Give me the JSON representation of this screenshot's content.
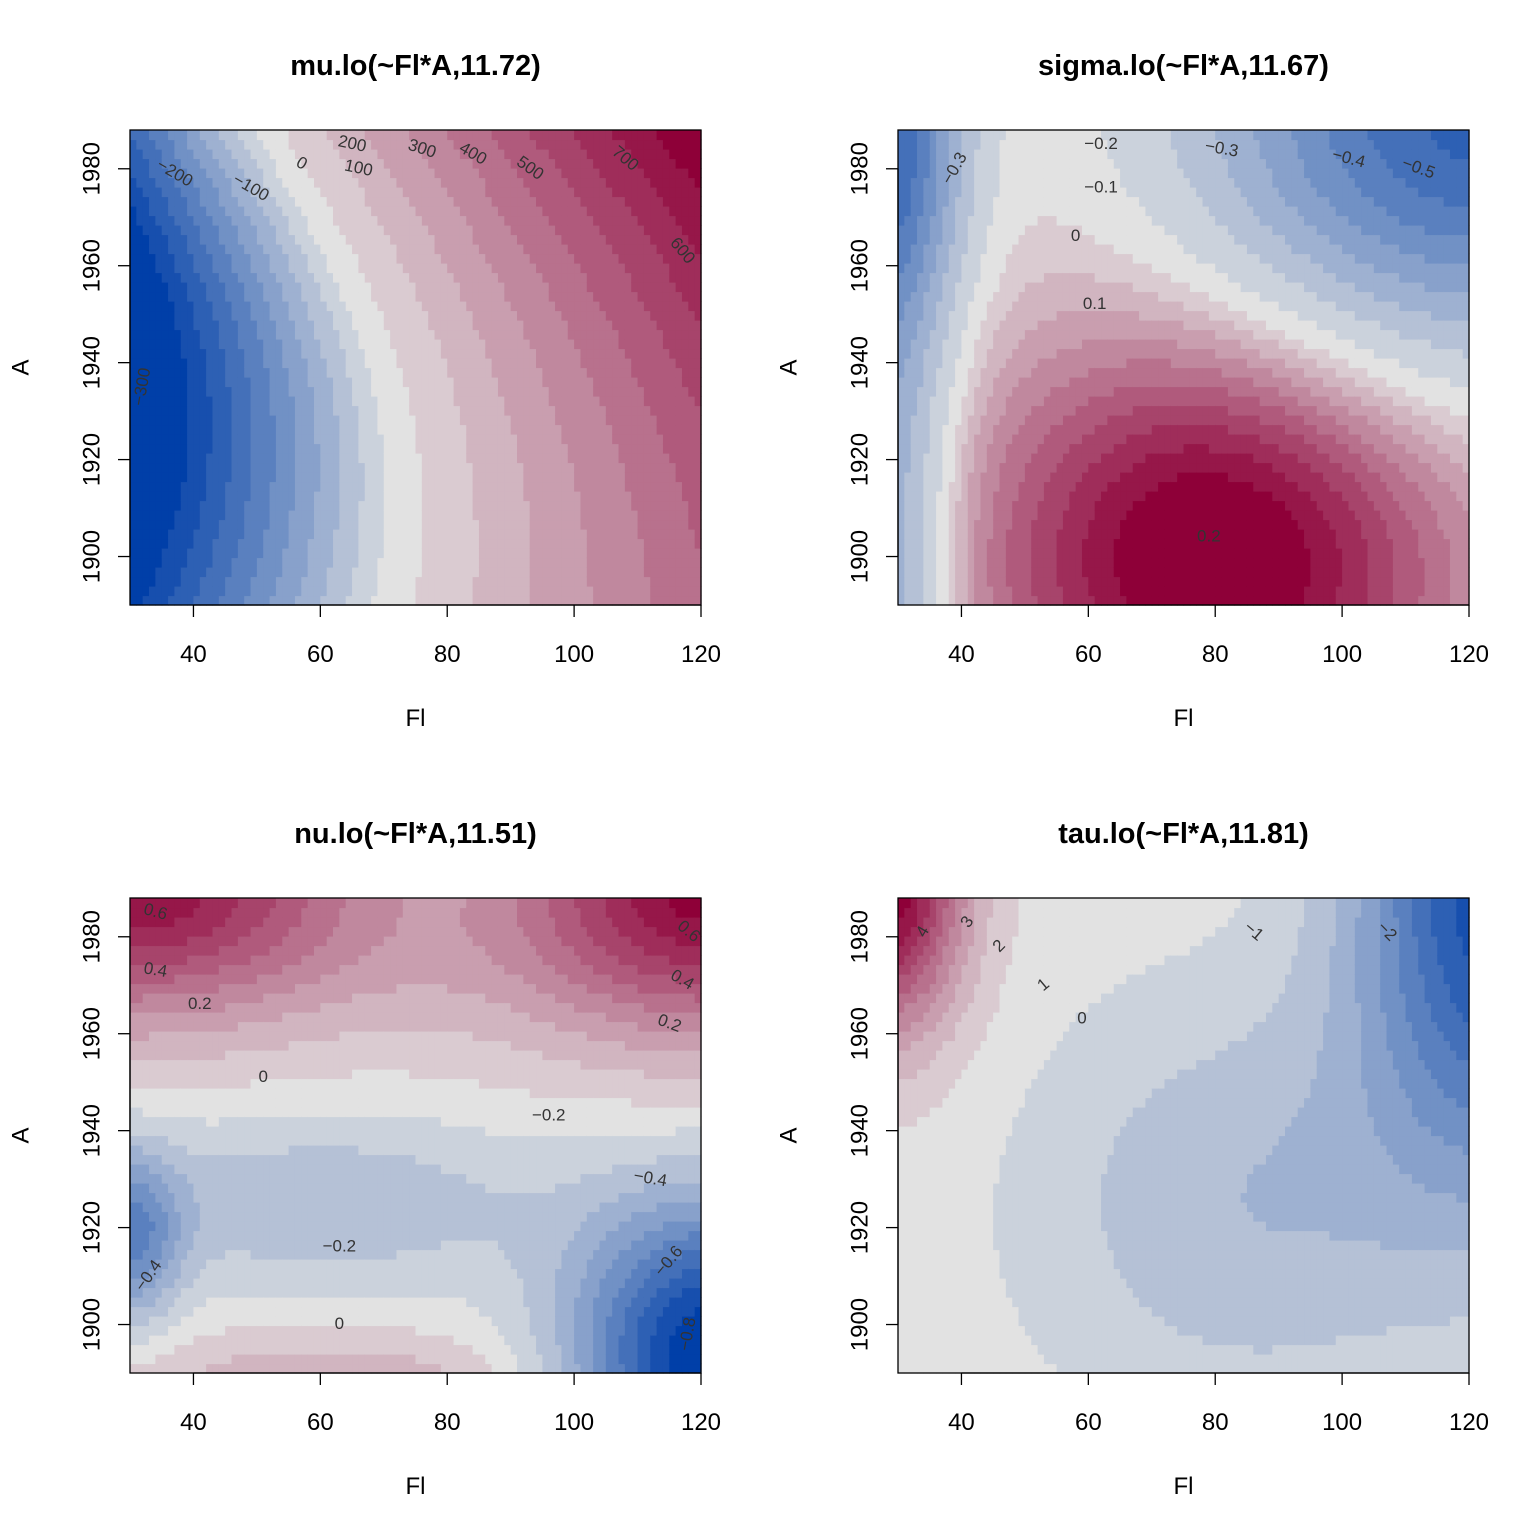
{
  "chart_data": [
    {
      "type": "heatmap",
      "title": "mu.lo(~Fl*A,11.72)",
      "xlabel": "Fl",
      "ylabel": "A",
      "xlim": [
        30,
        120
      ],
      "ylim": [
        1890,
        1988
      ],
      "x_ticks": [
        40,
        60,
        80,
        100,
        120
      ],
      "y_ticks": [
        1900,
        1920,
        1940,
        1960,
        1980
      ],
      "colorscale": [
        "#003fa8",
        "#e2e2e2",
        "#8e0038"
      ],
      "grid": false,
      "z_range": [
        -330,
        760
      ],
      "contour_labels": [
        {
          "text": "−300",
          "x": 32,
          "y": 1935,
          "angle": -80
        },
        {
          "text": "−200",
          "x": 37,
          "y": 1979,
          "angle": 30
        },
        {
          "text": "−100",
          "x": 49,
          "y": 1976,
          "angle": 30
        },
        {
          "text": "0",
          "x": 57,
          "y": 1981,
          "angle": 30
        },
        {
          "text": "100",
          "x": 66,
          "y": 1980,
          "angle": 12
        },
        {
          "text": "200",
          "x": 65,
          "y": 1985,
          "angle": 12
        },
        {
          "text": "300",
          "x": 76,
          "y": 1984,
          "angle": 18
        },
        {
          "text": "400",
          "x": 84,
          "y": 1983,
          "angle": 30
        },
        {
          "text": "500",
          "x": 93,
          "y": 1980,
          "angle": 35
        },
        {
          "text": "600",
          "x": 117,
          "y": 1963,
          "angle": 50
        },
        {
          "text": "700",
          "x": 108,
          "y": 1982,
          "angle": 40
        }
      ]
    },
    {
      "type": "heatmap",
      "title": "sigma.lo(~Fl*A,11.67)",
      "xlabel": "Fl",
      "ylabel": "A",
      "xlim": [
        30,
        120
      ],
      "ylim": [
        1890,
        1988
      ],
      "x_ticks": [
        40,
        60,
        80,
        100,
        120
      ],
      "y_ticks": [
        1900,
        1920,
        1940,
        1960,
        1980
      ],
      "colorscale": [
        "#003fa8",
        "#e2e2e2",
        "#8e0038"
      ],
      "grid": false,
      "z_range": [
        -0.55,
        0.25
      ],
      "contour_labels": [
        {
          "text": "−0.3",
          "x": 39,
          "y": 1980,
          "angle": -60
        },
        {
          "text": "−0.2",
          "x": 62,
          "y": 1985,
          "angle": 0
        },
        {
          "text": "−0.1",
          "x": 62,
          "y": 1976,
          "angle": 0
        },
        {
          "text": "0",
          "x": 58,
          "y": 1966,
          "angle": 0
        },
        {
          "text": "0.1",
          "x": 61,
          "y": 1952,
          "angle": 0
        },
        {
          "text": "0.2",
          "x": 79,
          "y": 1904,
          "angle": 0
        },
        {
          "text": "−0.3",
          "x": 81,
          "y": 1984,
          "angle": 10
        },
        {
          "text": "−0.4",
          "x": 101,
          "y": 1982,
          "angle": 15
        },
        {
          "text": "−0.5",
          "x": 112,
          "y": 1980,
          "angle": 20
        }
      ]
    },
    {
      "type": "heatmap",
      "title": "nu.lo(~Fl*A,11.51)",
      "xlabel": "Fl",
      "ylabel": "A",
      "xlim": [
        30,
        120
      ],
      "ylim": [
        1890,
        1988
      ],
      "x_ticks": [
        40,
        60,
        80,
        100,
        120
      ],
      "y_ticks": [
        1900,
        1920,
        1940,
        1960,
        1980
      ],
      "colorscale": [
        "#003fa8",
        "#e2e2e2",
        "#8e0038"
      ],
      "grid": false,
      "z_range": [
        -0.85,
        0.8
      ],
      "contour_labels": [
        {
          "text": "0.6",
          "x": 34,
          "y": 1985,
          "angle": 15
        },
        {
          "text": "0.4",
          "x": 34,
          "y": 1973,
          "angle": 10
        },
        {
          "text": "0.2",
          "x": 41,
          "y": 1966,
          "angle": 0
        },
        {
          "text": "0",
          "x": 51,
          "y": 1951,
          "angle": 0
        },
        {
          "text": "−0.2",
          "x": 96,
          "y": 1943,
          "angle": 0
        },
        {
          "text": "−0.2",
          "x": 63,
          "y": 1916,
          "angle": 0
        },
        {
          "text": "0",
          "x": 63,
          "y": 1900,
          "angle": 0
        },
        {
          "text": "−0.4",
          "x": 33,
          "y": 1910,
          "angle": -55
        },
        {
          "text": "−0.4",
          "x": 112,
          "y": 1930,
          "angle": 10
        },
        {
          "text": "−0.6",
          "x": 115,
          "y": 1913,
          "angle": -50
        },
        {
          "text": "−0.8",
          "x": 118,
          "y": 1898,
          "angle": -80
        },
        {
          "text": "0.6",
          "x": 118,
          "y": 1981,
          "angle": 40
        },
        {
          "text": "0.4",
          "x": 117,
          "y": 1971,
          "angle": 30
        },
        {
          "text": "0.2",
          "x": 115,
          "y": 1962,
          "angle": 20
        }
      ]
    },
    {
      "type": "heatmap",
      "title": "tau.lo(~Fl*A,11.81)",
      "xlabel": "Fl",
      "ylabel": "A",
      "xlim": [
        30,
        120
      ],
      "ylim": [
        1890,
        1988
      ],
      "x_ticks": [
        40,
        60,
        80,
        100,
        120
      ],
      "y_ticks": [
        1900,
        1920,
        1940,
        1960,
        1980
      ],
      "colorscale": [
        "#003fa8",
        "#e2e2e2",
        "#8e0038"
      ],
      "grid": false,
      "z_range": [
        -2.6,
        5.0
      ],
      "contour_labels": [
        {
          "text": "4",
          "x": 34,
          "y": 1981,
          "angle": -60
        },
        {
          "text": "3",
          "x": 41,
          "y": 1983,
          "angle": -55
        },
        {
          "text": "2",
          "x": 46,
          "y": 1978,
          "angle": -45
        },
        {
          "text": "1",
          "x": 53,
          "y": 1970,
          "angle": -40
        },
        {
          "text": "0",
          "x": 59,
          "y": 1963,
          "angle": 0
        },
        {
          "text": "−1",
          "x": 86,
          "y": 1981,
          "angle": 40
        },
        {
          "text": "−2",
          "x": 107,
          "y": 1981,
          "angle": 45
        }
      ]
    }
  ]
}
